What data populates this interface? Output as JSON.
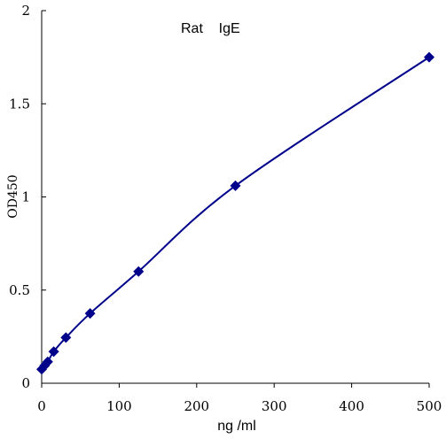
{
  "chart_data": {
    "type": "scatter",
    "title": "Rat    IgE",
    "xlabel": "ng /ml",
    "ylabel": "OD450",
    "xlim": [
      0,
      500
    ],
    "ylim": [
      0,
      2
    ],
    "x_ticks": [
      0,
      100,
      200,
      300,
      400,
      500
    ],
    "y_ticks": [
      0,
      0.5,
      1,
      1.5,
      2
    ],
    "x_tick_labels": [
      "0",
      "100",
      "200",
      "300",
      "400",
      "500"
    ],
    "y_tick_labels": [
      "0",
      "0.5",
      "1",
      "1.5",
      "2"
    ],
    "grid": false,
    "legend": "none",
    "series": [
      {
        "x": [
          0,
          3.9,
          7.8,
          15.6,
          31.25,
          62.5,
          125,
          250,
          500
        ],
        "y": [
          0.075,
          0.095,
          0.115,
          0.17,
          0.245,
          0.375,
          0.6,
          1.06,
          1.75
        ],
        "line": "smooth",
        "marker": "diamond",
        "color": "#00008B"
      }
    ]
  }
}
